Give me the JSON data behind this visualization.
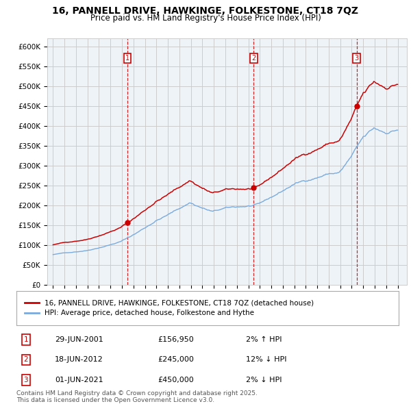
{
  "title": "16, PANNELL DRIVE, HAWKINGE, FOLKESTONE, CT18 7QZ",
  "subtitle": "Price paid vs. HM Land Registry's House Price Index (HPI)",
  "ylim": [
    0,
    620000
  ],
  "yticks": [
    0,
    50000,
    100000,
    150000,
    200000,
    250000,
    300000,
    350000,
    400000,
    450000,
    500000,
    550000,
    600000
  ],
  "ytick_labels": [
    "£0",
    "£50K",
    "£100K",
    "£150K",
    "£200K",
    "£250K",
    "£300K",
    "£350K",
    "£400K",
    "£450K",
    "£500K",
    "£550K",
    "£600K"
  ],
  "xlim_start": 1994.5,
  "xlim_end": 2025.8,
  "sale_color": "#cc0000",
  "hpi_color": "#7aaadd",
  "vline_color": "#cc0000",
  "grid_color": "#cccccc",
  "chart_bg_color": "#eef3f8",
  "bg_color": "#ffffff",
  "sale_label": "16, PANNELL DRIVE, HAWKINGE, FOLKESTONE, CT18 7QZ (detached house)",
  "hpi_label": "HPI: Average price, detached house, Folkestone and Hythe",
  "transactions": [
    {
      "num": 1,
      "date_x": 2001.49,
      "price": 156950,
      "label": "29-JUN-2001",
      "price_str": "£156,950",
      "pct_str": "2% ↑ HPI"
    },
    {
      "num": 2,
      "date_x": 2012.47,
      "price": 245000,
      "label": "18-JUN-2012",
      "price_str": "£245,000",
      "pct_str": "12% ↓ HPI"
    },
    {
      "num": 3,
      "date_x": 2021.42,
      "price": 450000,
      "label": "01-JUN-2021",
      "price_str": "£450,000",
      "pct_str": "2% ↓ HPI"
    }
  ],
  "copyright_text": "Contains HM Land Registry data © Crown copyright and database right 2025.\nThis data is licensed under the Open Government Licence v3.0.",
  "title_fontsize": 10,
  "subtitle_fontsize": 8.5,
  "tick_fontsize": 7.5,
  "legend_fontsize": 7.5,
  "annotation_fontsize": 8,
  "copyright_fontsize": 6.5
}
